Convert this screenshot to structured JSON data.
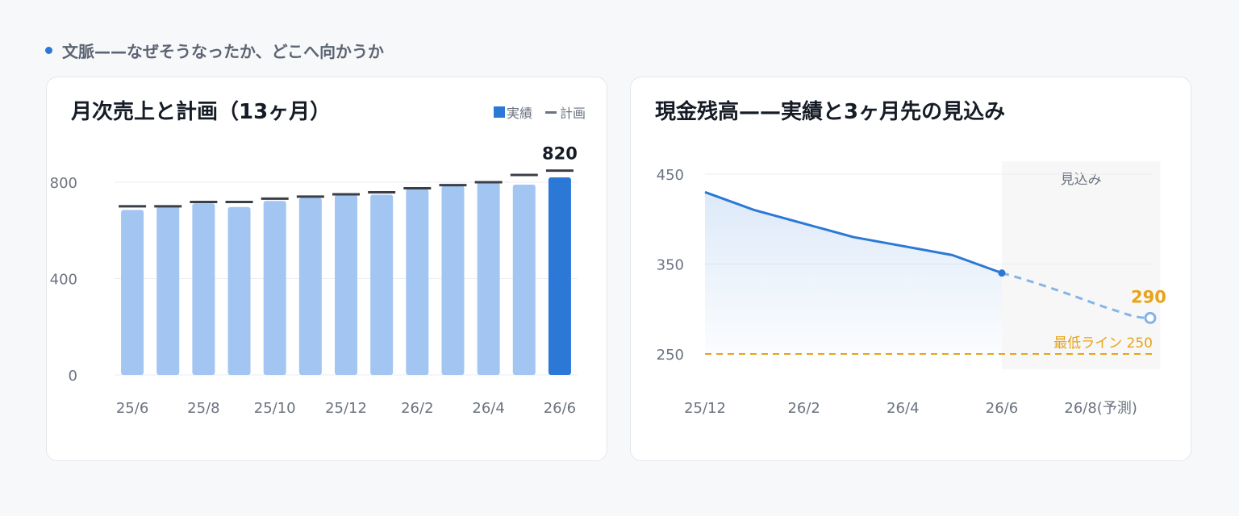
{
  "section": {
    "heading": "文脈——なぜそうなったか、どこへ向かうか"
  },
  "colors": {
    "actual_bar": "#a3c5f2",
    "latest_bar": "#2b78d6",
    "plan_tick": "#3a3f47",
    "line": "#2b78d6",
    "forecast_line": "#85b4e6",
    "threshold": "#e8a317",
    "forecast_shade": "#f7f7f7"
  },
  "left_chart": {
    "title": "月次売上と計画（13ヶ月）",
    "legend": {
      "actual": "実績",
      "plan": "計画"
    }
  },
  "right_chart": {
    "title": "現金残高——実績と3ヶ月先の見込み",
    "forecast_label": "見込み",
    "threshold_label": "最低ライン 250",
    "end_value_label": "290"
  },
  "chart_data": [
    {
      "type": "bar",
      "title": "月次売上と計画（13ヶ月）",
      "categories": [
        "25/6",
        "25/7",
        "25/8",
        "25/9",
        "25/10",
        "25/11",
        "25/12",
        "26/1",
        "26/2",
        "26/3",
        "26/4",
        "26/5",
        "26/6"
      ],
      "x_tick_labels": [
        "25/6",
        "25/8",
        "25/10",
        "25/12",
        "26/2",
        "26/4",
        "26/6"
      ],
      "y_ticks": [
        0,
        400,
        800
      ],
      "ylim": [
        0,
        800
      ],
      "grid": true,
      "legend_position": "top-right",
      "highlight_last": true,
      "data_label": "820",
      "series": [
        {
          "name": "実績",
          "values": [
            685,
            700,
            712,
            697,
            722,
            735,
            748,
            748,
            772,
            785,
            798,
            790,
            820
          ]
        },
        {
          "name": "計画",
          "values": [
            700,
            700,
            718,
            718,
            732,
            740,
            750,
            758,
            775,
            788,
            800,
            830,
            848
          ]
        }
      ]
    },
    {
      "type": "line",
      "title": "現金残高——実績と3ヶ月先の見込み",
      "x_tick_labels": [
        "25/12",
        "26/2",
        "26/4",
        "26/6",
        "26/8(予測)"
      ],
      "y_ticks": [
        250,
        350,
        450
      ],
      "ylim": [
        250,
        450
      ],
      "grid": true,
      "series": [
        {
          "x": [
            "25/12",
            "26/1",
            "26/2",
            "26/3",
            "26/4",
            "26/5",
            "26/6"
          ],
          "values": [
            430,
            410,
            395,
            380,
            370,
            360,
            340
          ]
        },
        {
          "x": [
            "26/6",
            "26/7",
            "26/8"
          ],
          "values": [
            340,
            300,
            290
          ],
          "style": "dashed"
        }
      ],
      "threshold": {
        "value": 250,
        "label": "最低ライン 250"
      },
      "forecast_region": {
        "from": "26/6",
        "to": "26/8",
        "label": "見込み"
      },
      "end_label": "290"
    }
  ]
}
